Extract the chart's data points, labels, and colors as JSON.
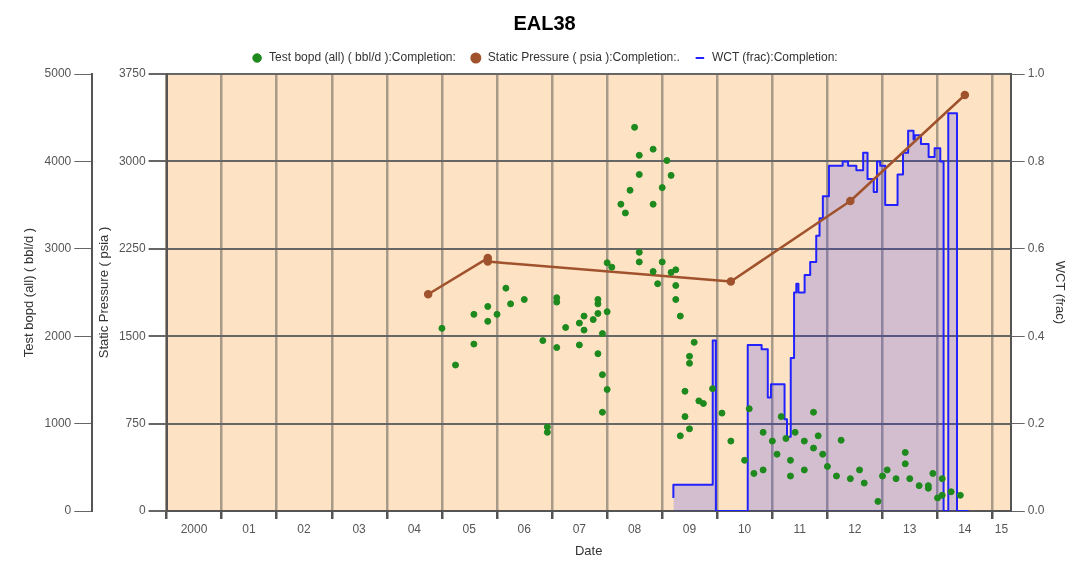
{
  "chart_data": {
    "type": "line",
    "title": "EAL38",
    "xlabel": "Date",
    "ylabel": "Static Pressure ( psia )",
    "y2label": "Test bopd (all) ( bbl/d )",
    "y3label": "WCT (frac)",
    "xlim": [
      "2000",
      "2015-05"
    ],
    "xticks": [
      {
        "value": "2000",
        "label": null
      },
      {
        "value": "2000-07",
        "label": "2000"
      },
      {
        "value": "2001",
        "label": null
      },
      {
        "value": "2001-07",
        "label": "01"
      },
      {
        "value": "2002",
        "label": null
      },
      {
        "value": "2002-07",
        "label": "02"
      },
      {
        "value": "2003",
        "label": null
      },
      {
        "value": "2003-07",
        "label": "03"
      },
      {
        "value": "2004",
        "label": null
      },
      {
        "value": "2004-07",
        "label": "04"
      },
      {
        "value": "2005",
        "label": null
      },
      {
        "value": "2005-07",
        "label": "05"
      },
      {
        "value": "2006",
        "label": null
      },
      {
        "value": "2006-07",
        "label": "06"
      },
      {
        "value": "2007",
        "label": null
      },
      {
        "value": "2007-07",
        "label": "07"
      },
      {
        "value": "2008",
        "label": null
      },
      {
        "value": "2008-07",
        "label": "08"
      },
      {
        "value": "2009",
        "label": null
      },
      {
        "value": "2009-07",
        "label": "09"
      },
      {
        "value": "2010",
        "label": null
      },
      {
        "value": "2010-07",
        "label": "10"
      },
      {
        "value": "2011",
        "label": null
      },
      {
        "value": "2011-07",
        "label": "11"
      },
      {
        "value": "2012",
        "label": null
      },
      {
        "value": "2012-07",
        "label": "12"
      },
      {
        "value": "2013",
        "label": null
      },
      {
        "value": "2013-07",
        "label": "13"
      },
      {
        "value": "2014",
        "label": null
      },
      {
        "value": "2014-07",
        "label": "14"
      },
      {
        "value": "2015",
        "label": null
      },
      {
        "value": "2015-03",
        "label": "15"
      }
    ],
    "ylim": [
      0,
      3750
    ],
    "yticks": [
      0,
      750,
      1500,
      2250,
      3000,
      3750
    ],
    "y2lim": [
      0,
      5000
    ],
    "y2ticks": [
      0,
      1000,
      2000,
      3000,
      4000,
      5000
    ],
    "y3lim": [
      0,
      1
    ],
    "y3ticks": [
      {
        "value": 0,
        "label": "0.0"
      },
      {
        "value": 0.2,
        "label": "0.2"
      },
      {
        "value": 0.4,
        "label": "0.4"
      },
      {
        "value": 0.6,
        "label": "0.6"
      },
      {
        "value": 0.8,
        "label": "0.8"
      },
      {
        "value": 1,
        "label": "1.0"
      }
    ],
    "grid": true,
    "legend": "top",
    "series": [
      {
        "name": "Test bopd (all) ( bbl/d ):Completion:",
        "type": "scatter",
        "axis": "y2",
        "marker": "circle",
        "color": "#1e8a1e",
        "x": [
          "2008-07",
          "2008-11",
          "2008-08",
          "2008-08",
          "2008-06",
          "2009-01",
          "2008-04",
          "2008-11",
          "2008-05",
          "2009-02",
          "2009-03",
          "2008-08",
          "2008-08",
          "2008-01",
          "2008-02",
          "2008-11",
          "2009-01",
          "2008-12",
          "2009-03",
          "2006-03",
          "2006-07",
          "2006-04",
          "2005-11",
          "2005-08",
          "2006-01",
          "2005-11",
          "2005-01",
          "2005-08",
          "2005-04",
          "2007-02",
          "2007-02",
          "2007-11",
          "2007-11",
          "2008-01",
          "2007-11",
          "2007-08",
          "2007-10",
          "2007-07",
          "2007-04",
          "2007-08",
          "2007-12",
          "2006-11",
          "2007-02",
          "2007-07",
          "2007-11",
          "2007-12",
          "2008-01",
          "2007-12",
          "2006-12",
          "2006-12",
          "2009-04",
          "2009-04",
          "2009-04",
          "2009-05",
          "2009-08",
          "2009-07",
          "2009-07",
          "2009-06",
          "2009-09",
          "2009-10",
          "2009-06",
          "2009-07",
          "2009-05",
          "2009-12",
          "2010-02",
          "2010-04",
          "2010-08",
          "2010-07",
          "2010-09",
          "2010-11",
          "2011-01",
          "2011-03",
          "2011-04",
          "2011-02",
          "2011-05",
          "2010-11",
          "2011-06",
          "2011-05",
          "2011-08",
          "2011-10",
          "2011-10",
          "2011-08",
          "2011-11",
          "2011-12",
          "2012-01",
          "2012-04",
          "2012-03",
          "2012-06",
          "2012-08",
          "2012-09",
          "2012-12",
          "2013-01",
          "2013-02",
          "2013-06",
          "2013-06",
          "2013-04",
          "2013-07",
          "2013-09",
          "2013-12",
          "2013-11",
          "2014-02",
          "2014-02",
          "2014-04",
          "2014-06",
          "2014-01",
          "2013-11"
        ],
        "values": [
          4390,
          4140,
          4070,
          3850,
          3670,
          3700,
          3510,
          3510,
          3410,
          4010,
          3840,
          2960,
          2850,
          2840,
          2790,
          2740,
          2850,
          2600,
          2730,
          2550,
          2420,
          2370,
          2340,
          2250,
          2250,
          2170,
          2090,
          1910,
          1670,
          2440,
          2390,
          2420,
          2370,
          2280,
          2260,
          2230,
          2190,
          2150,
          2100,
          2070,
          2030,
          1950,
          1870,
          1900,
          1800,
          1560,
          1390,
          1130,
          960,
          900,
          2760,
          2580,
          2420,
          2230,
          1930,
          1770,
          1690,
          1370,
          1260,
          1230,
          1080,
          940,
          860,
          1400,
          1120,
          800,
          1170,
          580,
          430,
          900,
          800,
          1080,
          830,
          650,
          580,
          470,
          900,
          400,
          800,
          1130,
          720,
          470,
          860,
          650,
          510,
          810,
          400,
          370,
          470,
          320,
          110,
          400,
          470,
          670,
          540,
          370,
          370,
          290,
          430,
          260,
          370,
          180,
          220,
          180,
          150,
          290
        ]
      },
      {
        "name": "Static Pressure ( psia ):Completion:.",
        "type": "line",
        "axis": "y",
        "marker": "circle",
        "color": "#a0522d",
        "x": [
          "2004-10",
          "2005-11",
          "2005-11",
          "2010-04",
          "2012-06",
          "2014-07"
        ],
        "values": [
          1860,
          2170,
          2140,
          1970,
          2660,
          3570
        ]
      },
      {
        "name": "WCT (frac):Completion:",
        "type": "step",
        "axis": "y3",
        "marker": "none",
        "color": "#2222ff",
        "x": [
          "2009-03-16",
          "2009-12-02",
          "2009-12-23",
          "2010-07-22",
          "2010-10-22",
          "2010-12-02",
          "2010-12-23",
          "2011-03-23",
          "2011-04-08",
          "2011-05-03",
          "2011-05-25",
          "2011-06-09",
          "2011-06-23",
          "2011-08-03",
          "2011-09-09",
          "2011-10-19",
          "2011-11-10",
          "2011-12-02",
          "2012-01-11",
          "2012-04-11",
          "2012-05-17",
          "2012-07-11",
          "2012-08-25",
          "2012-09-23",
          "2012-11-03",
          "2012-11-25",
          "2012-12-16",
          "2013-01-19",
          "2013-04-11",
          "2013-05-17",
          "2013-06-20",
          "2013-07-26",
          "2013-08-03",
          "2013-09-13",
          "2013-11-03",
          "2013-12-13",
          "2014-01-19",
          "2014-02-10",
          "2014-03-13",
          "2014-05-10",
          "2014-07-26"
        ],
        "values": [
          0.03,
          0.06,
          0.39,
          0,
          0.38,
          0.37,
          0.26,
          0.29,
          0.21,
          0.17,
          0.35,
          0.5,
          0.52,
          0.5,
          0.54,
          0.57,
          0.63,
          0.67,
          0.72,
          0.79,
          0.8,
          0.79,
          0.78,
          0.82,
          0.76,
          0.73,
          0.8,
          0.79,
          0.7,
          0.77,
          0.82,
          0.87,
          0.85,
          0.86,
          0.84,
          0.81,
          0.83,
          0.8,
          0,
          0.91,
          0
        ]
      }
    ]
  }
}
